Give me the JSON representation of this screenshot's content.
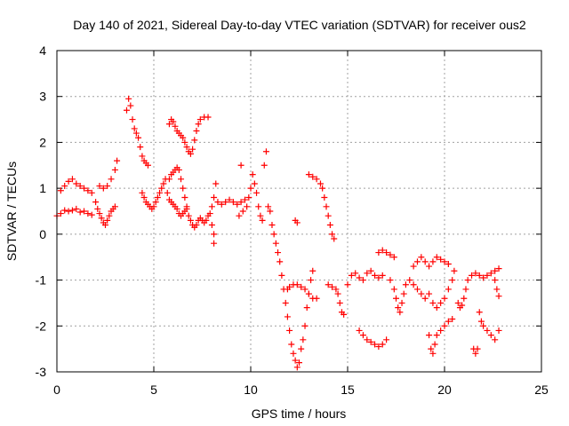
{
  "chart_data": {
    "type": "scatter",
    "title": "Day 140 of 2021, Sidereal Day-to-day VTEC variation (SDTVAR) for receiver ous2",
    "xlabel": "GPS time / hours",
    "ylabel": "SDTVAR / TECUs",
    "xlim": [
      0,
      25
    ],
    "ylim": [
      -3,
      4
    ],
    "x_ticks": [
      "0",
      "5",
      "10",
      "15",
      "20",
      "25"
    ],
    "y_ticks": [
      "-3",
      "-2",
      "-1",
      "0",
      "1",
      "2",
      "3",
      "4"
    ],
    "grid": true,
    "marker": "plus",
    "color": "#ff0000",
    "series": [
      {
        "name": "ous2",
        "points": [
          [
            0.0,
            0.4
          ],
          [
            0.2,
            0.45
          ],
          [
            0.4,
            0.52
          ],
          [
            0.6,
            0.5
          ],
          [
            0.8,
            0.52
          ],
          [
            1.0,
            0.55
          ],
          [
            1.2,
            0.48
          ],
          [
            1.4,
            0.5
          ],
          [
            1.6,
            0.45
          ],
          [
            1.8,
            0.42
          ],
          [
            0.2,
            0.95
          ],
          [
            0.4,
            1.05
          ],
          [
            0.6,
            1.15
          ],
          [
            0.8,
            1.2
          ],
          [
            1.0,
            1.1
          ],
          [
            1.2,
            1.05
          ],
          [
            1.4,
            1.0
          ],
          [
            1.6,
            0.95
          ],
          [
            1.8,
            0.9
          ],
          [
            2.0,
            0.7
          ],
          [
            2.1,
            0.55
          ],
          [
            2.2,
            0.45
          ],
          [
            2.3,
            0.35
          ],
          [
            2.4,
            0.25
          ],
          [
            2.5,
            0.2
          ],
          [
            2.6,
            0.3
          ],
          [
            2.7,
            0.4
          ],
          [
            2.8,
            0.5
          ],
          [
            2.9,
            0.55
          ],
          [
            3.0,
            0.6
          ],
          [
            2.2,
            1.05
          ],
          [
            2.4,
            1.0
          ],
          [
            2.6,
            1.05
          ],
          [
            2.8,
            1.2
          ],
          [
            3.0,
            1.4
          ],
          [
            3.1,
            1.6
          ],
          [
            3.6,
            2.7
          ],
          [
            3.7,
            2.95
          ],
          [
            3.8,
            2.8
          ],
          [
            3.9,
            2.5
          ],
          [
            4.0,
            2.3
          ],
          [
            4.1,
            2.2
          ],
          [
            4.2,
            2.1
          ],
          [
            4.3,
            1.9
          ],
          [
            4.4,
            1.7
          ],
          [
            4.5,
            1.6
          ],
          [
            4.6,
            1.55
          ],
          [
            4.7,
            1.5
          ],
          [
            4.4,
            0.9
          ],
          [
            4.5,
            0.8
          ],
          [
            4.6,
            0.7
          ],
          [
            4.7,
            0.65
          ],
          [
            4.8,
            0.6
          ],
          [
            4.9,
            0.55
          ],
          [
            5.0,
            0.6
          ],
          [
            5.1,
            0.7
          ],
          [
            5.2,
            0.8
          ],
          [
            5.3,
            0.9
          ],
          [
            5.4,
            1.0
          ],
          [
            5.5,
            1.1
          ],
          [
            5.6,
            1.2
          ],
          [
            5.7,
            0.9
          ],
          [
            5.8,
            0.75
          ],
          [
            5.9,
            0.7
          ],
          [
            6.0,
            0.65
          ],
          [
            6.1,
            0.6
          ],
          [
            6.2,
            0.55
          ],
          [
            6.3,
            0.45
          ],
          [
            6.4,
            0.4
          ],
          [
            6.5,
            0.45
          ],
          [
            6.6,
            0.5
          ],
          [
            6.7,
            0.55
          ],
          [
            5.8,
            1.2
          ],
          [
            5.9,
            1.3
          ],
          [
            6.0,
            1.35
          ],
          [
            6.1,
            1.4
          ],
          [
            6.2,
            1.45
          ],
          [
            6.3,
            1.4
          ],
          [
            6.4,
            1.2
          ],
          [
            6.5,
            1.0
          ],
          [
            6.6,
            0.8
          ],
          [
            6.7,
            0.6
          ],
          [
            5.8,
            2.4
          ],
          [
            5.9,
            2.5
          ],
          [
            6.0,
            2.45
          ],
          [
            6.1,
            2.35
          ],
          [
            6.2,
            2.25
          ],
          [
            6.3,
            2.2
          ],
          [
            6.4,
            2.15
          ],
          [
            6.5,
            2.1
          ],
          [
            6.6,
            2.0
          ],
          [
            6.7,
            1.9
          ],
          [
            6.8,
            1.8
          ],
          [
            6.9,
            1.75
          ],
          [
            7.0,
            1.85
          ],
          [
            7.1,
            2.05
          ],
          [
            7.2,
            2.25
          ],
          [
            7.3,
            2.4
          ],
          [
            7.4,
            2.5
          ],
          [
            7.6,
            2.55
          ],
          [
            7.8,
            2.55
          ],
          [
            6.8,
            0.4
          ],
          [
            6.9,
            0.3
          ],
          [
            7.0,
            0.2
          ],
          [
            7.1,
            0.15
          ],
          [
            7.2,
            0.2
          ],
          [
            7.3,
            0.3
          ],
          [
            7.4,
            0.35
          ],
          [
            7.5,
            0.3
          ],
          [
            7.6,
            0.25
          ],
          [
            7.7,
            0.3
          ],
          [
            7.8,
            0.4
          ],
          [
            7.9,
            0.45
          ],
          [
            8.0,
            0.6
          ],
          [
            8.0,
            0.2
          ],
          [
            8.1,
            0.0
          ],
          [
            8.1,
            -0.2
          ],
          [
            8.1,
            0.8
          ],
          [
            8.2,
            1.1
          ],
          [
            8.3,
            0.7
          ],
          [
            8.5,
            0.65
          ],
          [
            8.7,
            0.7
          ],
          [
            8.9,
            0.75
          ],
          [
            9.1,
            0.7
          ],
          [
            9.3,
            0.65
          ],
          [
            9.5,
            0.7
          ],
          [
            9.7,
            0.75
          ],
          [
            9.9,
            0.8
          ],
          [
            10.0,
            1.0
          ],
          [
            10.1,
            1.3
          ],
          [
            10.2,
            1.1
          ],
          [
            10.3,
            0.9
          ],
          [
            9.5,
            1.5
          ],
          [
            9.4,
            0.4
          ],
          [
            9.6,
            0.5
          ],
          [
            9.8,
            0.6
          ],
          [
            10.4,
            0.6
          ],
          [
            10.5,
            0.4
          ],
          [
            10.6,
            0.3
          ],
          [
            10.7,
            1.5
          ],
          [
            10.8,
            1.8
          ],
          [
            10.9,
            0.6
          ],
          [
            11.0,
            0.5
          ],
          [
            11.1,
            0.2
          ],
          [
            11.2,
            0.0
          ],
          [
            11.3,
            -0.2
          ],
          [
            11.4,
            -0.4
          ],
          [
            11.5,
            -0.6
          ],
          [
            11.6,
            -0.9
          ],
          [
            11.7,
            -1.2
          ],
          [
            11.8,
            -1.5
          ],
          [
            11.9,
            -1.8
          ],
          [
            12.0,
            -2.1
          ],
          [
            12.1,
            -2.4
          ],
          [
            12.2,
            -2.6
          ],
          [
            12.3,
            -2.75
          ],
          [
            12.4,
            -2.9
          ],
          [
            12.5,
            -2.8
          ],
          [
            12.6,
            -2.5
          ],
          [
            12.7,
            -2.3
          ],
          [
            12.8,
            -2.0
          ],
          [
            12.9,
            -1.6
          ],
          [
            13.0,
            -1.3
          ],
          [
            13.1,
            -1.0
          ],
          [
            13.2,
            -0.8
          ],
          [
            11.9,
            -1.2
          ],
          [
            12.0,
            -1.15
          ],
          [
            12.2,
            -1.1
          ],
          [
            12.4,
            -1.1
          ],
          [
            12.6,
            -1.15
          ],
          [
            12.8,
            -1.2
          ],
          [
            13.0,
            -1.3
          ],
          [
            13.2,
            -1.4
          ],
          [
            13.4,
            -1.4
          ],
          [
            12.3,
            0.3
          ],
          [
            12.4,
            0.25
          ],
          [
            13.0,
            1.3
          ],
          [
            13.2,
            1.25
          ],
          [
            13.4,
            1.2
          ],
          [
            13.6,
            1.1
          ],
          [
            13.7,
            1.0
          ],
          [
            13.8,
            0.8
          ],
          [
            13.9,
            0.6
          ],
          [
            14.0,
            0.4
          ],
          [
            14.1,
            0.2
          ],
          [
            14.2,
            0.0
          ],
          [
            14.3,
            -0.1
          ],
          [
            14.0,
            -1.1
          ],
          [
            14.2,
            -1.15
          ],
          [
            14.4,
            -1.2
          ],
          [
            14.5,
            -1.3
          ],
          [
            14.6,
            -1.5
          ],
          [
            14.7,
            -1.7
          ],
          [
            14.8,
            -1.75
          ],
          [
            15.0,
            -1.1
          ],
          [
            15.2,
            -0.9
          ],
          [
            15.4,
            -0.85
          ],
          [
            15.6,
            -0.95
          ],
          [
            15.8,
            -1.0
          ],
          [
            16.0,
            -0.85
          ],
          [
            16.2,
            -0.8
          ],
          [
            16.4,
            -0.9
          ],
          [
            16.6,
            -0.95
          ],
          [
            16.8,
            -0.9
          ],
          [
            15.6,
            -2.1
          ],
          [
            15.8,
            -2.2
          ],
          [
            16.0,
            -2.3
          ],
          [
            16.2,
            -2.35
          ],
          [
            16.4,
            -2.4
          ],
          [
            16.6,
            -2.45
          ],
          [
            16.8,
            -2.4
          ],
          [
            17.0,
            -2.3
          ],
          [
            16.6,
            -0.4
          ],
          [
            16.8,
            -0.35
          ],
          [
            17.0,
            -0.4
          ],
          [
            17.2,
            -0.45
          ],
          [
            17.4,
            -0.5
          ],
          [
            17.2,
            -1.0
          ],
          [
            17.4,
            -1.2
          ],
          [
            17.5,
            -1.4
          ],
          [
            17.6,
            -1.6
          ],
          [
            17.7,
            -1.7
          ],
          [
            17.8,
            -1.5
          ],
          [
            17.9,
            -1.3
          ],
          [
            18.0,
            -1.1
          ],
          [
            18.2,
            -1.0
          ],
          [
            18.4,
            -1.1
          ],
          [
            18.6,
            -1.2
          ],
          [
            18.8,
            -1.3
          ],
          [
            19.0,
            -1.4
          ],
          [
            18.4,
            -0.7
          ],
          [
            18.6,
            -0.6
          ],
          [
            18.8,
            -0.5
          ],
          [
            19.0,
            -0.6
          ],
          [
            19.2,
            -0.7
          ],
          [
            19.4,
            -0.6
          ],
          [
            19.6,
            -0.5
          ],
          [
            19.8,
            -0.55
          ],
          [
            20.0,
            -0.6
          ],
          [
            20.2,
            -0.65
          ],
          [
            19.2,
            -2.2
          ],
          [
            19.3,
            -2.5
          ],
          [
            19.4,
            -2.6
          ],
          [
            19.5,
            -2.4
          ],
          [
            19.6,
            -2.2
          ],
          [
            19.8,
            -2.1
          ],
          [
            20.0,
            -2.0
          ],
          [
            20.2,
            -1.9
          ],
          [
            20.4,
            -1.85
          ],
          [
            19.2,
            -1.3
          ],
          [
            19.4,
            -1.5
          ],
          [
            19.6,
            -1.6
          ],
          [
            19.8,
            -1.5
          ],
          [
            20.0,
            -1.4
          ],
          [
            20.2,
            -1.2
          ],
          [
            20.4,
            -1.0
          ],
          [
            20.5,
            -0.8
          ],
          [
            20.7,
            -1.5
          ],
          [
            20.8,
            -1.6
          ],
          [
            20.9,
            -1.55
          ],
          [
            21.0,
            -1.4
          ],
          [
            21.1,
            -1.2
          ],
          [
            21.2,
            -1.0
          ],
          [
            21.4,
            -0.9
          ],
          [
            21.6,
            -0.85
          ],
          [
            21.8,
            -0.9
          ],
          [
            22.0,
            -0.95
          ],
          [
            22.2,
            -0.9
          ],
          [
            22.4,
            -0.85
          ],
          [
            22.6,
            -0.8
          ],
          [
            22.8,
            -0.75
          ],
          [
            21.8,
            -1.7
          ],
          [
            21.9,
            -1.9
          ],
          [
            22.0,
            -2.0
          ],
          [
            22.2,
            -2.1
          ],
          [
            22.4,
            -2.2
          ],
          [
            22.6,
            -2.3
          ],
          [
            22.8,
            -2.1
          ],
          [
            21.5,
            -2.5
          ],
          [
            21.6,
            -2.6
          ],
          [
            21.7,
            -2.5
          ],
          [
            22.6,
            -1.0
          ],
          [
            22.7,
            -1.2
          ],
          [
            22.8,
            -1.35
          ]
        ]
      }
    ]
  }
}
